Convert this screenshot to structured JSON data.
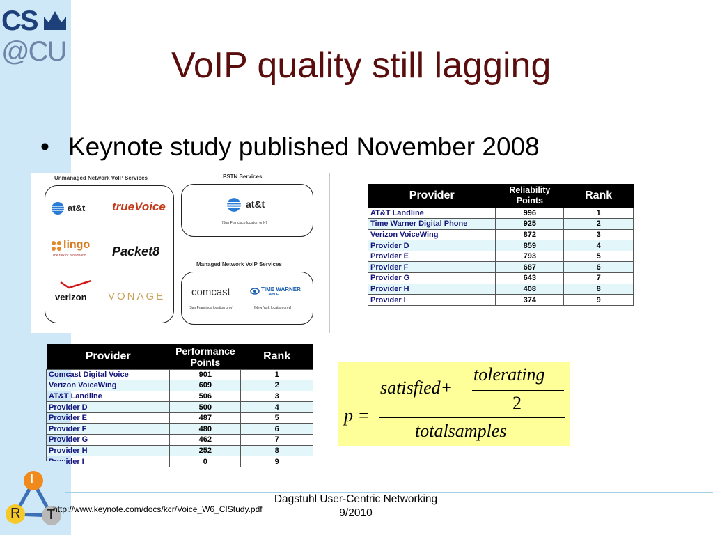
{
  "slide": {
    "title": "VoIP quality still lagging",
    "bullet": "Keynote study published November 2008"
  },
  "logo": {
    "line1": "CS",
    "line2": "@CU"
  },
  "services": {
    "unmanaged_heading": "Unmanaged Network VoIP Services",
    "pstn_heading": "PSTN Services",
    "managed_heading": "Managed Network VoIP Services",
    "unmanaged_brands": [
      "at&t",
      "trueVoice",
      "lingo",
      "Packet8",
      "verizon",
      "VONAGE"
    ],
    "lingo_tagline": "The talk of broadband",
    "pstn_brand": "at&t",
    "pstn_note": "[San Francisco location only]",
    "managed_brands": [
      "comcast",
      "TIME WARNER",
      "CABLE"
    ],
    "comcast_note": "[San Francisco location only]",
    "twc_note": "[New York location only]"
  },
  "reliability_table": {
    "headers": [
      "Provider",
      "Reliability Points",
      "Rank"
    ],
    "rows": [
      {
        "provider": "AT&T Landline",
        "points": "996",
        "rank": "1"
      },
      {
        "provider": "Time Warner Digital Phone",
        "points": "925",
        "rank": "2"
      },
      {
        "provider": "Verizon VoiceWing",
        "points": "872",
        "rank": "3"
      },
      {
        "provider": "Provider D",
        "points": "859",
        "rank": "4"
      },
      {
        "provider": "Provider E",
        "points": "793",
        "rank": "5"
      },
      {
        "provider": "Provider F",
        "points": "687",
        "rank": "6"
      },
      {
        "provider": "Provider G",
        "points": "643",
        "rank": "7"
      },
      {
        "provider": "Provider H",
        "points": "408",
        "rank": "8"
      },
      {
        "provider": "Provider I",
        "points": "374",
        "rank": "9"
      }
    ]
  },
  "performance_table": {
    "headers": [
      "Provider",
      "Performance Points",
      "Rank"
    ],
    "rows": [
      {
        "provider": "Comcast Digital Voice",
        "points": "901",
        "rank": "1"
      },
      {
        "provider": "Verizon VoiceWing",
        "points": "609",
        "rank": "2"
      },
      {
        "provider": "AT&T Landline",
        "points": "506",
        "rank": "3"
      },
      {
        "provider": "Provider D",
        "points": "500",
        "rank": "4"
      },
      {
        "provider": "Provider E",
        "points": "487",
        "rank": "5"
      },
      {
        "provider": "Provider F",
        "points": "480",
        "rank": "6"
      },
      {
        "provider": "Provider G",
        "points": "462",
        "rank": "7"
      },
      {
        "provider": "Provider H",
        "points": "252",
        "rank": "8"
      },
      {
        "provider": "Provider I",
        "points": "0",
        "rank": "9"
      }
    ]
  },
  "formula": {
    "lhs": "p =",
    "satisfied": "satisfied+",
    "tolerating": "tolerating",
    "two": "2",
    "denominator": "totalsamples"
  },
  "irt_logo": {
    "top": "I",
    "left": "R",
    "right": "T"
  },
  "footer": {
    "center_line1": "Dagstuhl User-Centric Networking",
    "center_line2": "9/2010",
    "url": "http://www.keynote.com/docs/kcr/Voice_W6_CIStudy.pdf"
  },
  "colors": {
    "title": "#5a0d0d",
    "left_band": "#cfe8f8",
    "table_header": "#000000",
    "row_alt": "#e3f7fb",
    "formula_bg": "#ffff99"
  }
}
